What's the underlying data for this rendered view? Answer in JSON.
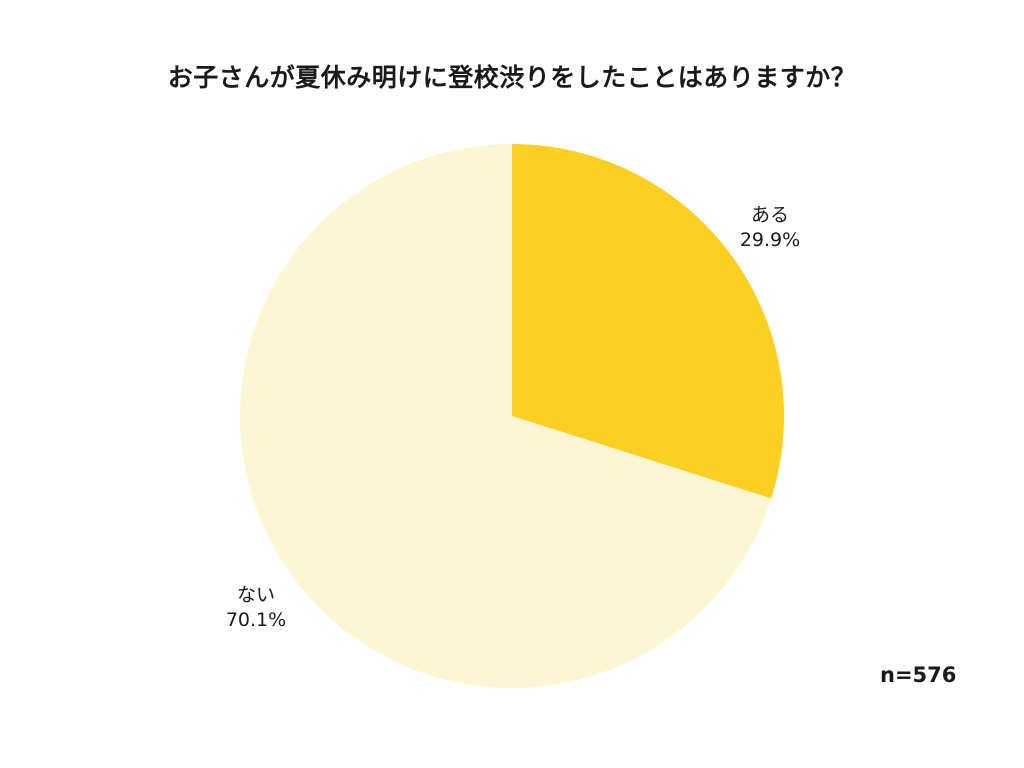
{
  "chart_data": {
    "type": "pie",
    "title": "お子さんが夏休み明けに登校渋りをしたことはありますか？",
    "slices": [
      {
        "label": "ある",
        "value": 29.9,
        "value_label": "29.9%",
        "color": "#FCD022"
      },
      {
        "label": "ない",
        "value": 70.1,
        "value_label": "70.1%",
        "color": "#FCF6D4"
      }
    ],
    "start": "12 o'clock",
    "direction": "clockwise",
    "sample_size": "n=576"
  }
}
